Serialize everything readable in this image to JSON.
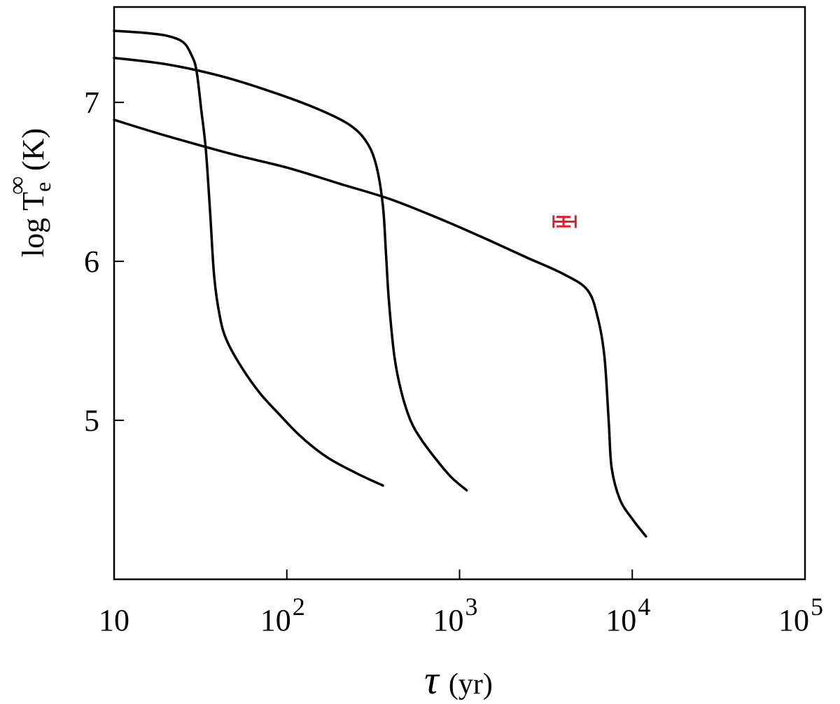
{
  "chart_data": {
    "type": "line",
    "xscale": "log",
    "xlim": [
      10,
      100000
    ],
    "ylim": [
      4.0,
      7.6
    ],
    "grid": false,
    "legend": "none",
    "xlabel": {
      "symbol": "τ",
      "unit": "(yr)"
    },
    "ylabel": {
      "prefix": "log T",
      "sub": "e",
      "sup": "∞",
      "unit": "(K)"
    },
    "x_ticks": [
      {
        "value": 10,
        "base": "10",
        "exp": ""
      },
      {
        "value": 100,
        "base": "10",
        "exp": "2"
      },
      {
        "value": 1000,
        "base": "10",
        "exp": "3"
      },
      {
        "value": 10000,
        "base": "10",
        "exp": "4"
      },
      {
        "value": 100000,
        "base": "10",
        "exp": "5"
      }
    ],
    "y_ticks": [
      {
        "value": 5,
        "label": "5"
      },
      {
        "value": 6,
        "label": "6"
      },
      {
        "value": 7,
        "label": "7"
      }
    ],
    "series": [
      {
        "color": "#000000",
        "points": [
          [
            10,
            7.45
          ],
          [
            14,
            7.44
          ],
          [
            20,
            7.42
          ],
          [
            25,
            7.38
          ],
          [
            28,
            7.3
          ],
          [
            30,
            7.2
          ],
          [
            32,
            6.95
          ],
          [
            34,
            6.7
          ],
          [
            36,
            6.3
          ],
          [
            38,
            5.9
          ],
          [
            41,
            5.65
          ],
          [
            45,
            5.5
          ],
          [
            55,
            5.33
          ],
          [
            70,
            5.17
          ],
          [
            90,
            5.04
          ],
          [
            120,
            4.9
          ],
          [
            170,
            4.77
          ],
          [
            250,
            4.67
          ],
          [
            360,
            4.59
          ]
        ]
      },
      {
        "color": "#000000",
        "points": [
          [
            10,
            7.28
          ],
          [
            20,
            7.24
          ],
          [
            40,
            7.17
          ],
          [
            80,
            7.07
          ],
          [
            150,
            6.96
          ],
          [
            230,
            6.86
          ],
          [
            290,
            6.75
          ],
          [
            330,
            6.6
          ],
          [
            360,
            6.35
          ],
          [
            375,
            6.05
          ],
          [
            390,
            5.75
          ],
          [
            420,
            5.4
          ],
          [
            460,
            5.18
          ],
          [
            520,
            5.0
          ],
          [
            600,
            4.88
          ],
          [
            750,
            4.74
          ],
          [
            900,
            4.64
          ],
          [
            1100,
            4.56
          ]
        ]
      },
      {
        "color": "#000000",
        "points": [
          [
            10,
            6.89
          ],
          [
            20,
            6.79
          ],
          [
            50,
            6.67
          ],
          [
            100,
            6.59
          ],
          [
            200,
            6.49
          ],
          [
            400,
            6.39
          ],
          [
            800,
            6.26
          ],
          [
            1500,
            6.13
          ],
          [
            2500,
            6.02
          ],
          [
            4000,
            5.92
          ],
          [
            5500,
            5.82
          ],
          [
            6300,
            5.65
          ],
          [
            6900,
            5.4
          ],
          [
            7300,
            5.0
          ],
          [
            7600,
            4.7
          ],
          [
            8500,
            4.5
          ],
          [
            10000,
            4.38
          ],
          [
            12000,
            4.27
          ]
        ]
      }
    ],
    "data_point": {
      "x": 4000,
      "y": 6.25,
      "x_err": [
        3500,
        4700
      ],
      "y_err": [
        6.22,
        6.28
      ],
      "color": "#e8192c"
    }
  }
}
